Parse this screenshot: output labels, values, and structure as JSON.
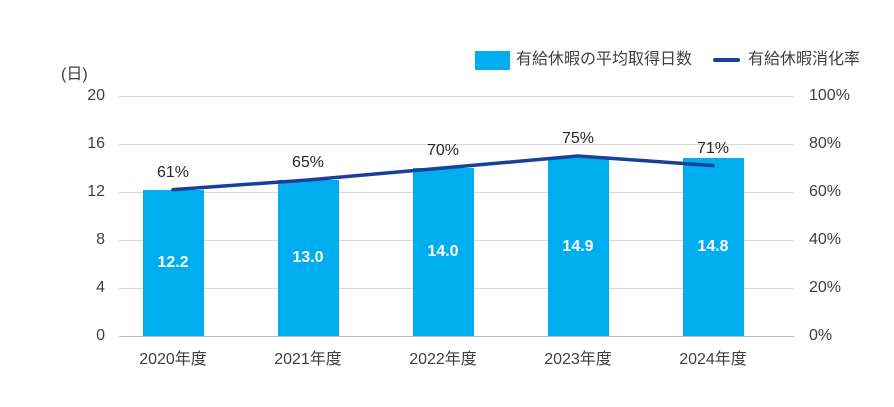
{
  "chart_data": {
    "type": "combo-bar-line",
    "title": "",
    "categories": [
      "2020年度",
      "2021年度",
      "2022年度",
      "2023年度",
      "2024年度"
    ],
    "series": [
      {
        "name": "有給休暇の平均取得日数",
        "type": "bar",
        "axis": "left",
        "color": "#00AEEF",
        "values": [
          12.2,
          13.0,
          14.0,
          14.9,
          14.8
        ],
        "labels": [
          "12.2",
          "13.0",
          "14.0",
          "14.9",
          "14.8"
        ],
        "label_color": "#FFFFFF"
      },
      {
        "name": "有給休暇消化率",
        "type": "line",
        "axis": "right",
        "color": "#16409B",
        "values": [
          61,
          65,
          70,
          75,
          71
        ],
        "labels": [
          "61%",
          "65%",
          "70%",
          "75%",
          "71%"
        ]
      }
    ],
    "left_axis": {
      "unit": "(日)",
      "min": 0,
      "max": 20,
      "ticks": [
        "0",
        "4",
        "8",
        "12",
        "16",
        "20"
      ]
    },
    "right_axis": {
      "min": 0,
      "max": 100,
      "ticks": [
        "0%",
        "20%",
        "40%",
        "60%",
        "80%",
        "100%"
      ]
    },
    "legend": {
      "position": "top-right"
    },
    "grid": true,
    "colors": {
      "grid": "#D9D9D9",
      "axis_line": "#BFBFBF",
      "tick_text": "#3F3F3F",
      "point_label_text": "#262626",
      "background": "#FFFFFF"
    }
  }
}
